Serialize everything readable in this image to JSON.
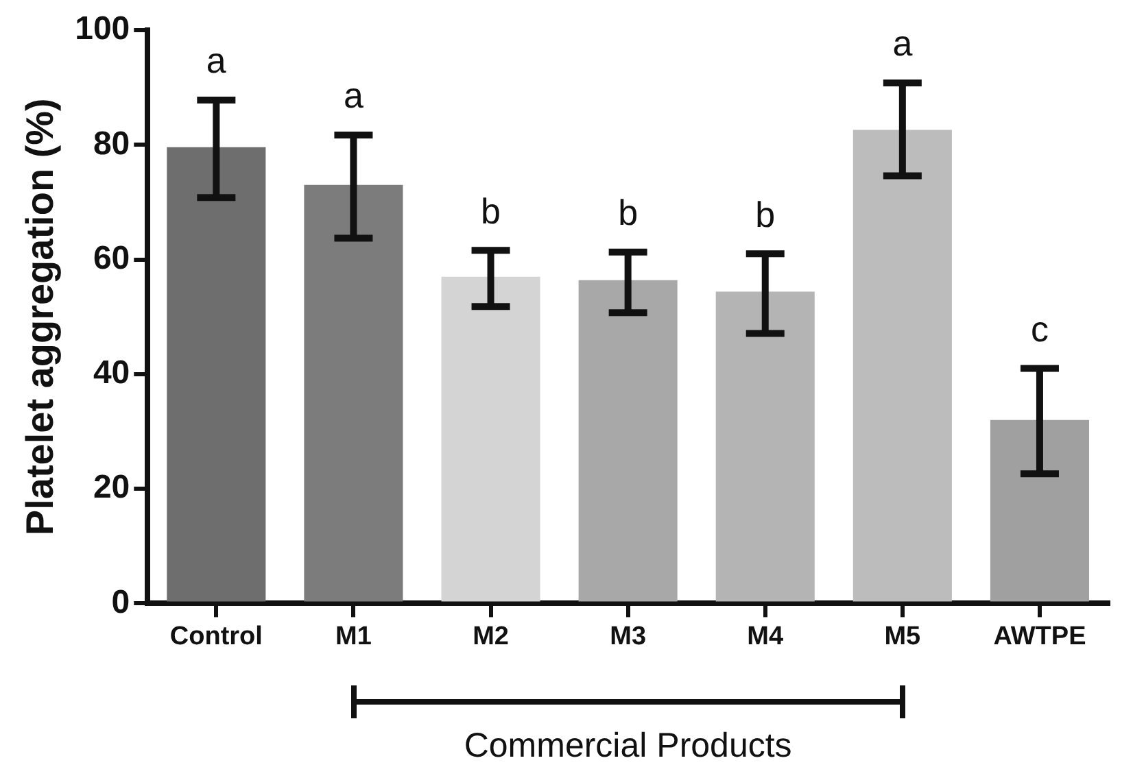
{
  "chart_data": {
    "type": "bar",
    "ylabel": "Platelet aggregation (%)",
    "categories": [
      "Control",
      "M1",
      "M2",
      "M3",
      "M4",
      "M5",
      "AWTPE"
    ],
    "values": [
      79.6,
      73.0,
      57.0,
      56.4,
      54.4,
      82.6,
      32.0
    ],
    "errors": [
      [
        70.8,
        87.8
      ],
      [
        63.7,
        81.7
      ],
      [
        51.8,
        61.6
      ],
      [
        50.7,
        61.3
      ],
      [
        47.1,
        61.0
      ],
      [
        74.6,
        90.8
      ],
      [
        22.6,
        41.0
      ]
    ],
    "colors": [
      "#6e6e6e",
      "#7c7c7c",
      "#d4d4d4",
      "#a8a8a8",
      "#b4b4b4",
      "#bcbcbc",
      "#a0a0a0"
    ],
    "ylim": [
      0,
      100
    ],
    "yticks": [
      0,
      20,
      40,
      60,
      80,
      100
    ],
    "annotations": [
      "a",
      "a",
      "b",
      "b",
      "b",
      "a",
      "c",
      "Commercial Products"
    ]
  }
}
